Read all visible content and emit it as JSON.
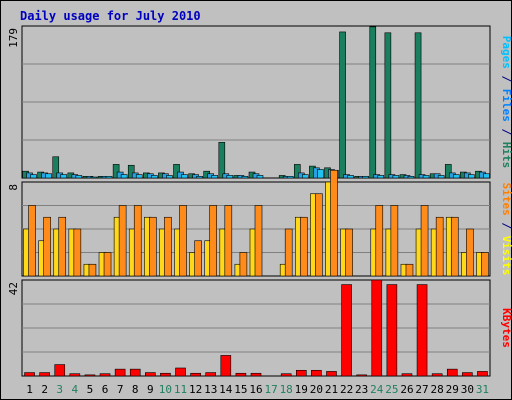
{
  "chart_data": {
    "type": "bar",
    "title": "Daily usage for July 2010",
    "categories": [
      "1",
      "2",
      "3",
      "4",
      "5",
      "6",
      "7",
      "8",
      "9",
      "10",
      "11",
      "12",
      "13",
      "14",
      "15",
      "16",
      "17",
      "18",
      "19",
      "20",
      "21",
      "22",
      "23",
      "24",
      "25",
      "26",
      "27",
      "28",
      "29",
      "30",
      "31"
    ],
    "weekend_days": [
      "3",
      "4",
      "10",
      "11",
      "17",
      "18",
      "24",
      "25",
      "31"
    ],
    "panels": [
      {
        "id": "top",
        "ymax": 179,
        "ymax_label": "179",
        "side_label": [
          {
            "text": "Pages",
            "color": "#00c0ff"
          },
          {
            "text": " / ",
            "color": "#000080"
          },
          {
            "text": "Files",
            "color": "#0080ff"
          },
          {
            "text": " / ",
            "color": "#000080"
          },
          {
            "text": "Hits",
            "color": "#208060"
          }
        ],
        "series": [
          {
            "name": "Hits",
            "color": "#1a7f5f",
            "values": [
              8,
              7,
              25,
              6,
              2,
              2,
              16,
              15,
              6,
              6,
              16,
              5,
              8,
              42,
              3,
              7,
              0,
              3,
              16,
              14,
              12,
              172,
              2,
              178,
              171,
              4,
              171,
              5,
              16,
              7,
              8
            ]
          },
          {
            "name": "Files",
            "color": "#2aa0e0",
            "values": [
              6,
              6,
              6,
              4,
              2,
              2,
              7,
              6,
              5,
              5,
              7,
              4,
              5,
              5,
              3,
              5,
              0,
              2,
              6,
              12,
              10,
              4,
              2,
              4,
              4,
              3,
              4,
              5,
              6,
              6,
              7
            ]
          },
          {
            "name": "Pages",
            "color": "#20c0f0",
            "values": [
              4,
              5,
              4,
              3,
              1,
              2,
              4,
              4,
              3,
              3,
              4,
              2,
              3,
              3,
              2,
              3,
              0,
              2,
              4,
              10,
              9,
              3,
              2,
              3,
              3,
              2,
              3,
              3,
              4,
              4,
              5
            ]
          }
        ]
      },
      {
        "id": "mid",
        "ymax": 8,
        "ymax_label": "8",
        "side_label": [
          {
            "text": "Sites",
            "color": "#ff8000"
          },
          {
            "text": " / ",
            "color": "#000080"
          },
          {
            "text": "Visits",
            "color": "#ffff00"
          }
        ],
        "series": [
          {
            "name": "Visits",
            "color": "#ffd81a",
            "values": [
              4,
              3,
              4,
              4,
              1,
              2,
              5,
              4,
              5,
              4,
              4,
              2,
              3,
              4,
              1,
              4,
              0,
              1,
              5,
              7,
              8,
              4,
              0,
              4,
              4,
              1,
              4,
              4,
              5,
              2,
              2
            ]
          },
          {
            "name": "Sites",
            "color": "#ff8c1a",
            "values": [
              6,
              5,
              5,
              4,
              1,
              2,
              6,
              6,
              5,
              5,
              6,
              3,
              6,
              6,
              2,
              6,
              0,
              4,
              5,
              7,
              9,
              4,
              0,
              6,
              6,
              1,
              6,
              5,
              5,
              4,
              2
            ]
          }
        ]
      },
      {
        "id": "bot",
        "ymax": 42,
        "ymax_label": "42",
        "side_label": [
          {
            "text": "KBytes",
            "color": "#ff0000"
          }
        ],
        "series": [
          {
            "name": "KBytes",
            "color": "#ff0000",
            "values": [
              1.5,
              1.5,
              5,
              1,
              0.5,
              1,
              3,
              3,
              1.5,
              1.2,
              3.5,
              1.2,
              1.5,
              9,
              1.2,
              1.2,
              0,
              1,
              2.5,
              2.5,
              2,
              40,
              0.5,
              42,
              40,
              1,
              40,
              1,
              3,
              1.5,
              2
            ]
          }
        ]
      }
    ]
  }
}
